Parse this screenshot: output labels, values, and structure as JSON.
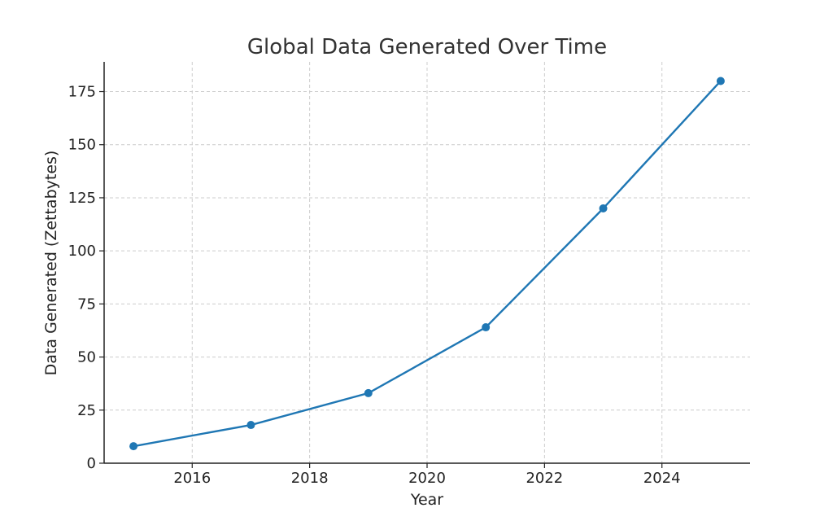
{
  "chart_data": {
    "type": "line",
    "title": "Global Data Generated Over Time",
    "xlabel": "Year",
    "ylabel": "Data Generated (Zettabytes)",
    "xlim": [
      2014.5,
      2025.5
    ],
    "ylim": [
      0,
      189
    ],
    "x_ticks": [
      2016,
      2018,
      2020,
      2022,
      2024
    ],
    "y_ticks": [
      0,
      25,
      50,
      75,
      100,
      125,
      150,
      175
    ],
    "grid": true,
    "legend": "none",
    "series": [
      {
        "color": "#1f77b4",
        "marker": "circle",
        "x": [
          2015,
          2017,
          2019,
          2021,
          2023,
          2025
        ],
        "y": [
          8,
          18,
          33,
          64,
          120,
          180
        ]
      }
    ]
  }
}
